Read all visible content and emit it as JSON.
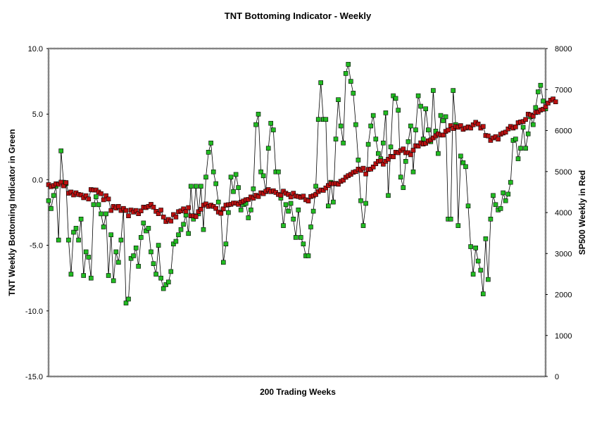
{
  "chart_data": {
    "type": "line",
    "title": "TNT Bottoming Indicator - Weekly",
    "xlabel": "200 Trading Weeks",
    "ylabel_left": "TNT Weekly Bottoming Indicator in Green",
    "ylabel_right": "SP500 Weekly in Red",
    "ylim_left": [
      -15,
      10
    ],
    "ylim_right": [
      0,
      8000
    ],
    "yticks_left": [
      "10.0",
      "5.0",
      "0.0",
      "-5.0",
      "-10.0",
      "-15.0"
    ],
    "yticks_right": [
      "8000",
      "7000",
      "6000",
      "5000",
      "4000",
      "3000",
      "2000",
      "1000",
      "0"
    ],
    "grid": false,
    "x_count": 200,
    "series": [
      {
        "color": "#22bb22",
        "axis": "left",
        "values": [
          -1.6,
          -2.2,
          -1.2,
          -0.5,
          -4.6,
          2.2,
          -0.2,
          -0.3,
          -4.6,
          -7.2,
          -4.0,
          -3.7,
          -4.6,
          -3.0,
          -7.3,
          -5.5,
          -5.9,
          -7.5,
          -1.9,
          -1.3,
          -1.9,
          -2.6,
          -3.6,
          -2.6,
          -7.3,
          -4.2,
          -7.7,
          -5.5,
          -6.3,
          -4.6,
          -2.3,
          -9.4,
          -9.1,
          -6.0,
          -5.8,
          -5.2,
          -6.6,
          -4.4,
          -3.3,
          -3.9,
          -3.7,
          -5.5,
          -6.4,
          -7.2,
          -5.0,
          -7.5,
          -8.3,
          -8.0,
          -7.8,
          -7.0,
          -4.9,
          -4.7,
          -4.2,
          -3.8,
          -3.4,
          -2.7,
          -4.1,
          -0.5,
          -3.0,
          -0.5,
          -2.6,
          -0.5,
          -3.8,
          0.2,
          2.1,
          2.8,
          0.6,
          -0.3,
          -1.7,
          -2.5,
          -6.3,
          -4.9,
          -2.5,
          0.2,
          -0.9,
          0.4,
          -0.6,
          -2.3,
          -1.9,
          -1.8,
          -2.9,
          -2.3,
          -0.7,
          4.2,
          5.0,
          0.6,
          0.3,
          -0.9,
          2.4,
          4.3,
          3.8,
          0.6,
          0.6,
          -1.4,
          -3.5,
          -1.9,
          -2.4,
          -1.8,
          -3.0,
          -4.4,
          -2.3,
          -4.4,
          -4.9,
          -5.8,
          -5.8,
          -3.6,
          -2.4,
          -0.5,
          4.6,
          7.4,
          4.6,
          4.6,
          -2.0,
          -0.2,
          -1.7,
          3.1,
          6.1,
          4.1,
          2.8,
          8.1,
          8.8,
          7.5,
          6.6,
          4.2,
          1.5,
          -1.6,
          -3.5,
          -1.8,
          2.7,
          4.1,
          4.9,
          3.1,
          2.0,
          1.6,
          2.8,
          5.1,
          -1.2,
          2.5,
          6.4,
          6.2,
          5.3,
          0.2,
          -0.6,
          1.4,
          2.9,
          4.1,
          0.6,
          3.8,
          6.4,
          5.6,
          3.1,
          5.4,
          3.8,
          2.9,
          6.8,
          3.7,
          2.0,
          4.9,
          4.5,
          4.8,
          -3.0,
          -3.0,
          6.8,
          4.2,
          -3.5,
          1.8,
          1.3,
          1.0,
          -2.0,
          -5.1,
          -7.2,
          -5.2,
          -6.2,
          -6.9,
          -8.7,
          -4.5,
          -7.6,
          -3.0,
          -1.2,
          -1.9,
          -2.3,
          -2.2,
          -1.0,
          -1.6,
          -1.1,
          -0.2,
          3.0,
          3.1,
          1.6,
          2.4,
          4.0,
          2.4,
          3.5,
          4.8,
          4.2,
          5.5,
          6.7,
          7.2,
          6.0,
          5.4
        ]
      },
      {
        "color": "#bb1111",
        "axis": "right",
        "values": [
          4680,
          4630,
          4660,
          4700,
          4690,
          4740,
          4650,
          4730,
          4470,
          4500,
          4430,
          4480,
          4440,
          4430,
          4360,
          4410,
          4330,
          4560,
          4550,
          4550,
          4500,
          4460,
          4310,
          4410,
          4330,
          4050,
          4150,
          4110,
          4150,
          4050,
          4100,
          4050,
          3920,
          4060,
          4010,
          4050,
          3970,
          4040,
          4130,
          4120,
          4150,
          4200,
          4130,
          4030,
          3970,
          4060,
          3890,
          3780,
          3830,
          3790,
          3950,
          3890,
          4020,
          4040,
          4090,
          4030,
          4120,
          3920,
          3920,
          3900,
          4020,
          4080,
          4180,
          4210,
          4150,
          4180,
          4150,
          4100,
          4010,
          3980,
          4090,
          4180,
          4190,
          4200,
          4230,
          4230,
          4200,
          4250,
          4280,
          4310,
          4320,
          4380,
          4350,
          4420,
          4390,
          4480,
          4460,
          4520,
          4560,
          4510,
          4530,
          4490,
          4440,
          4420,
          4520,
          4470,
          4440,
          4380,
          4470,
          4400,
          4390,
          4370,
          4400,
          4310,
          4280,
          4390,
          4410,
          4440,
          4510,
          4550,
          4540,
          4600,
          4660,
          4710,
          4700,
          4710,
          4690,
          4760,
          4790,
          4860,
          4900,
          4930,
          4980,
          5000,
          5060,
          5030,
          5080,
          4940,
          5050,
          5060,
          5110,
          5190,
          5250,
          5260,
          5180,
          5250,
          5300,
          5370,
          5360,
          5470,
          5460,
          5510,
          5550,
          5460,
          5460,
          5410,
          5520,
          5630,
          5620,
          5700,
          5670,
          5690,
          5750,
          5770,
          5820,
          5870,
          5920,
          5890,
          5890,
          5980,
          6010,
          6120,
          6050,
          6100,
          6080,
          6120,
          6030,
          6060,
          6090,
          6060,
          6140,
          6200,
          6160,
          6060,
          6100,
          5880,
          5870,
          5760,
          5820,
          5850,
          5790,
          5910,
          5940,
          5960,
          6040,
          6100,
          6060,
          6090,
          6190,
          6210,
          6220,
          6270,
          6400,
          6380,
          6350,
          6440,
          6450,
          6500,
          6520,
          6580,
          6670,
          6740,
          6770,
          6700
        ]
      }
    ]
  }
}
